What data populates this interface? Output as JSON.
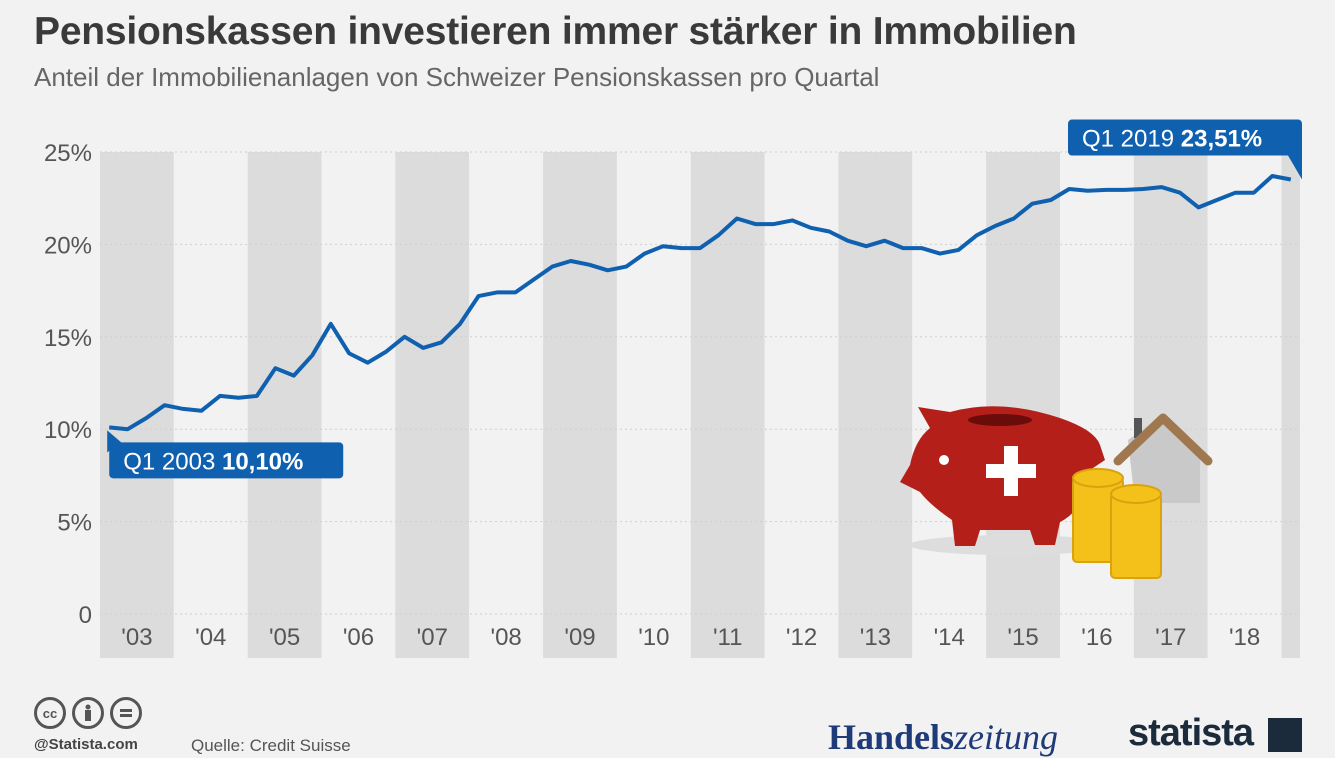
{
  "header": {
    "title": "Pensionskassen investieren immer stärker in Immobilien",
    "subtitle": "Anteil der Immobilienanlagen von Schweizer Pensionskassen pro Quartal"
  },
  "chart_data": {
    "type": "line",
    "y_ticks": [
      "25%",
      "20%",
      "15%",
      "10%",
      "5%",
      "0"
    ],
    "ylim": [
      0,
      25
    ],
    "x_tick_labels": [
      "'03",
      "'04",
      "'05",
      "'06",
      "'07",
      "'08",
      "'09",
      "'10",
      "'11",
      "'12",
      "'13",
      "'14",
      "'15",
      "'16",
      "'17",
      "'18"
    ],
    "series": [
      {
        "color": "#1060b0",
        "x": [
          "Q1 2003",
          "Q2 2003",
          "Q3 2003",
          "Q4 2003",
          "Q1 2004",
          "Q2 2004",
          "Q3 2004",
          "Q4 2004",
          "Q1 2005",
          "Q2 2005",
          "Q3 2005",
          "Q4 2005",
          "Q1 2006",
          "Q2 2006",
          "Q3 2006",
          "Q4 2006",
          "Q1 2007",
          "Q2 2007",
          "Q3 2007",
          "Q4 2007",
          "Q1 2008",
          "Q2 2008",
          "Q3 2008",
          "Q4 2008",
          "Q1 2009",
          "Q2 2009",
          "Q3 2009",
          "Q4 2009",
          "Q1 2010",
          "Q2 2010",
          "Q3 2010",
          "Q4 2010",
          "Q1 2011",
          "Q2 2011",
          "Q3 2011",
          "Q4 2011",
          "Q1 2012",
          "Q2 2012",
          "Q3 2012",
          "Q4 2012",
          "Q1 2013",
          "Q2 2013",
          "Q3 2013",
          "Q4 2013",
          "Q1 2014",
          "Q2 2014",
          "Q3 2014",
          "Q4 2014",
          "Q1 2015",
          "Q2 2015",
          "Q3 2015",
          "Q4 2015",
          "Q1 2016",
          "Q2 2016",
          "Q3 2016",
          "Q4 2016",
          "Q1 2017",
          "Q2 2017",
          "Q3 2017",
          "Q4 2017",
          "Q1 2018",
          "Q2 2018",
          "Q3 2018",
          "Q4 2018",
          "Q1 2019"
        ],
        "values": [
          10.1,
          10.0,
          10.6,
          11.3,
          11.1,
          11.0,
          11.8,
          11.7,
          11.8,
          13.3,
          12.9,
          14.0,
          15.7,
          14.1,
          13.6,
          14.2,
          15.0,
          14.4,
          14.7,
          15.7,
          17.2,
          17.4,
          17.4,
          18.1,
          18.8,
          19.1,
          18.9,
          18.6,
          18.8,
          19.5,
          19.9,
          19.8,
          19.8,
          20.5,
          21.4,
          21.1,
          21.1,
          21.3,
          20.9,
          20.7,
          20.2,
          19.9,
          20.2,
          19.8,
          19.8,
          19.5,
          19.7,
          20.5,
          21.0,
          21.4,
          22.2,
          22.4,
          23.0,
          22.9,
          22.95,
          22.95,
          23.0,
          23.1,
          22.8,
          22.0,
          22.4,
          22.8,
          22.8,
          23.7,
          23.51
        ]
      }
    ],
    "annotations": [
      {
        "period": "Q1 2003",
        "value_label": "10,10%"
      },
      {
        "period": "Q1 2019",
        "value_label": "23,51%"
      }
    ]
  },
  "footer": {
    "license_icons": [
      "cc-icon",
      "by-icon",
      "nd-icon"
    ],
    "credit": "@Statista.com",
    "source": "Quelle: Credit Suisse",
    "brand_handelszeitung_bold": "Handels",
    "brand_handelszeitung_light": "zeitung",
    "brand_statista": "statista"
  }
}
